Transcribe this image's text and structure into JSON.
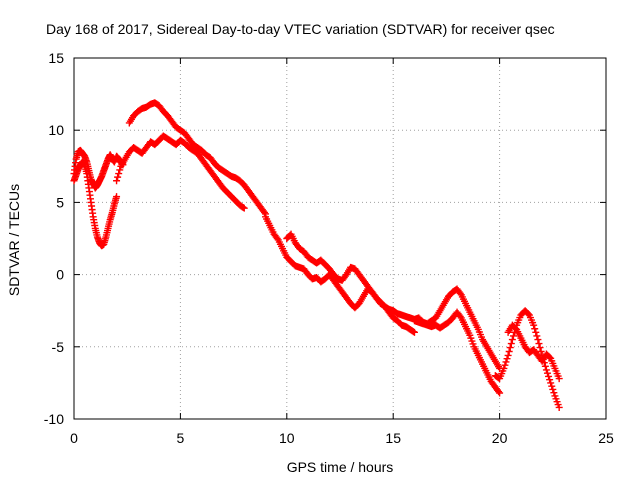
{
  "chart_data": {
    "type": "scatter",
    "title": "Day 168 of 2017, Sidereal Day-to-day VTEC variation (SDTVAR) for receiver qsec",
    "xlabel": "GPS time / hours",
    "ylabel": "SDTVAR / TECUs",
    "xlim": [
      0,
      25
    ],
    "ylim": [
      -10,
      15
    ],
    "xticks": [
      "0",
      "5",
      "10",
      "15",
      "20",
      "25"
    ],
    "yticks": [
      "15",
      "10",
      "5",
      "0",
      "-5",
      "-10"
    ],
    "xtick_values": [
      0,
      5,
      10,
      15,
      20,
      25
    ],
    "ytick_values": [
      15,
      10,
      5,
      0,
      -5,
      -10
    ],
    "grid": true,
    "marker": "+",
    "color": "#ff0000",
    "series": [
      {
        "name": "SDTVAR",
        "x": [
          0.0,
          0.1,
          0.2,
          0.3,
          0.4,
          0.5,
          0.6,
          0.7,
          0.8,
          0.9,
          1.0,
          1.1,
          1.2,
          1.3,
          1.4,
          1.5,
          1.6,
          1.7,
          1.8,
          1.9,
          2.0,
          2.1,
          2.2,
          2.3,
          0.0,
          0.1,
          0.2,
          0.3,
          0.4,
          0.5,
          0.6,
          0.7,
          0.8,
          0.9,
          1.0,
          1.1,
          1.2,
          1.3,
          1.4,
          1.5,
          1.6,
          1.7,
          1.8,
          1.9,
          2.0,
          2.0,
          2.2,
          2.4,
          2.6,
          2.8,
          3.0,
          3.2,
          3.4,
          3.6,
          3.8,
          4.0,
          4.2,
          4.4,
          4.6,
          4.8,
          5.0,
          5.2,
          5.4,
          5.6,
          5.8,
          6.0,
          6.2,
          6.4,
          6.6,
          6.8,
          7.0,
          7.2,
          7.4,
          7.6,
          7.8,
          8.0,
          2.6,
          2.8,
          3.0,
          3.2,
          3.4,
          3.6,
          3.8,
          4.0,
          4.2,
          4.4,
          4.6,
          4.8,
          5.0,
          5.2,
          5.4,
          5.6,
          5.8,
          6.0,
          6.2,
          6.4,
          6.6,
          6.8,
          7.0,
          7.2,
          7.4,
          7.6,
          7.8,
          8.0,
          8.2,
          8.4,
          8.6,
          8.8,
          9.0,
          9.0,
          9.2,
          9.4,
          9.6,
          9.8,
          10.0,
          10.2,
          10.4,
          10.6,
          10.8,
          11.0,
          11.2,
          11.4,
          11.6,
          11.8,
          12.0,
          12.2,
          12.4,
          12.6,
          12.8,
          13.0,
          13.2,
          13.4,
          13.6,
          13.8,
          14.0,
          14.2,
          14.4,
          14.6,
          14.8,
          15.0,
          10.0,
          10.2,
          10.4,
          10.6,
          10.8,
          11.0,
          11.2,
          11.4,
          11.6,
          11.8,
          12.0,
          12.2,
          12.4,
          12.6,
          12.8,
          13.0,
          13.2,
          13.4,
          13.6,
          13.8,
          14.0,
          14.2,
          14.4,
          14.6,
          14.8,
          15.0,
          15.2,
          15.4,
          15.6,
          15.8,
          16.0,
          15.0,
          15.2,
          15.4,
          15.6,
          15.8,
          16.0,
          16.2,
          16.4,
          16.6,
          16.8,
          17.0,
          17.2,
          17.4,
          17.6,
          17.8,
          18.0,
          18.2,
          18.4,
          18.6,
          18.8,
          19.0,
          19.2,
          19.4,
          19.6,
          19.8,
          20.0,
          16.0,
          16.2,
          16.4,
          16.6,
          16.8,
          17.0,
          17.2,
          17.4,
          17.6,
          17.8,
          18.0,
          18.2,
          18.4,
          18.6,
          18.8,
          19.0,
          19.2,
          19.4,
          19.6,
          19.8,
          20.0,
          19.8,
          20.0,
          20.2,
          20.4,
          20.6,
          20.8,
          21.0,
          21.2,
          21.4,
          21.6,
          21.8,
          22.0,
          22.2,
          22.4,
          22.6,
          22.8,
          20.4,
          20.6,
          20.8,
          21.0,
          21.2,
          21.4,
          21.6,
          21.8,
          22.0,
          22.2,
          22.4,
          22.6,
          22.8
        ],
        "y": [
          7.0,
          8.0,
          8.5,
          8.6,
          8.4,
          8.2,
          7.8,
          7.2,
          6.6,
          6.3,
          6.0,
          6.2,
          6.5,
          6.8,
          7.2,
          7.6,
          8.0,
          8.3,
          8.0,
          7.8,
          8.2,
          8.0,
          7.8,
          7.6,
          6.5,
          6.9,
          7.3,
          7.6,
          7.8,
          7.6,
          7.0,
          6.0,
          5.0,
          4.0,
          3.2,
          2.6,
          2.2,
          2.0,
          2.1,
          2.6,
          3.2,
          3.8,
          4.3,
          4.9,
          5.4,
          6.5,
          7.5,
          8.0,
          8.5,
          8.8,
          8.6,
          8.4,
          8.8,
          9.2,
          9.0,
          9.3,
          9.6,
          9.4,
          9.2,
          9.0,
          9.3,
          9.1,
          8.8,
          8.6,
          8.4,
          8.0,
          7.6,
          7.2,
          6.8,
          6.4,
          6.0,
          5.7,
          5.4,
          5.1,
          4.8,
          4.6,
          10.5,
          11.0,
          11.3,
          11.5,
          11.6,
          11.8,
          11.9,
          11.7,
          11.3,
          11.0,
          10.6,
          10.2,
          10.0,
          9.8,
          9.4,
          9.0,
          8.8,
          8.6,
          8.3,
          8.1,
          7.7,
          7.4,
          7.2,
          7.0,
          6.8,
          6.7,
          6.5,
          6.2,
          5.8,
          5.4,
          5.0,
          4.6,
          4.2,
          4.0,
          3.4,
          2.8,
          2.4,
          1.8,
          1.2,
          0.9,
          0.6,
          0.5,
          0.4,
          0.0,
          -0.3,
          -0.2,
          -0.5,
          -0.3,
          0.0,
          -0.4,
          -0.8,
          -1.2,
          -1.6,
          -2.0,
          -2.3,
          -2.0,
          -1.5,
          -1.0,
          -1.2,
          -1.6,
          -2.0,
          -2.2,
          -2.4,
          -2.5,
          2.5,
          2.8,
          2.2,
          1.8,
          1.6,
          1.2,
          1.0,
          0.8,
          1.0,
          0.7,
          0.4,
          0.0,
          -0.3,
          -0.4,
          0.0,
          0.5,
          0.4,
          0.0,
          -0.4,
          -0.8,
          -1.2,
          -1.6,
          -1.9,
          -2.2,
          -2.6,
          -3.0,
          -3.2,
          -3.5,
          -3.6,
          -3.8,
          -4.0,
          -2.5,
          -2.7,
          -2.8,
          -2.9,
          -3.0,
          -3.1,
          -3.0,
          -3.3,
          -3.4,
          -3.2,
          -3.0,
          -2.5,
          -2.0,
          -1.5,
          -1.2,
          -1.0,
          -1.4,
          -2.0,
          -2.6,
          -3.2,
          -3.8,
          -4.5,
          -5.0,
          -5.5,
          -6.0,
          -6.5,
          -3.2,
          -3.3,
          -3.4,
          -3.5,
          -3.6,
          -3.5,
          -3.7,
          -3.5,
          -3.3,
          -3.0,
          -2.6,
          -3.0,
          -3.6,
          -4.2,
          -5.0,
          -5.6,
          -6.2,
          -6.8,
          -7.4,
          -7.8,
          -8.2,
          -7.0,
          -7.2,
          -6.5,
          -5.6,
          -4.5,
          -3.5,
          -2.8,
          -2.5,
          -2.8,
          -3.5,
          -4.5,
          -5.6,
          -6.6,
          -7.5,
          -8.4,
          -9.2,
          -4.0,
          -3.5,
          -3.8,
          -4.4,
          -5.0,
          -5.4,
          -5.2,
          -5.6,
          -6.0,
          -5.5,
          -5.8,
          -6.5,
          -7.2
        ]
      }
    ]
  }
}
